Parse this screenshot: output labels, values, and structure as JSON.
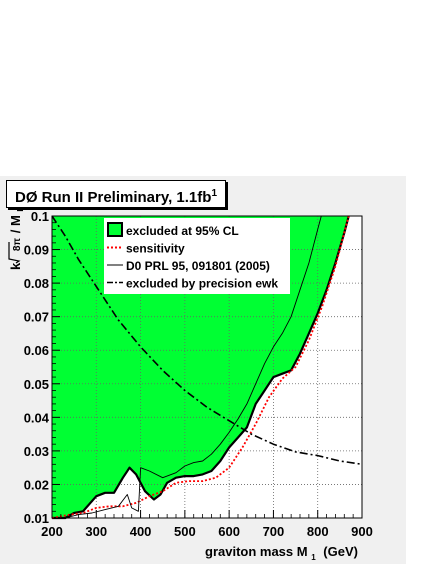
{
  "header": {
    "title": "DØ Run II Preliminary, 1.1fb",
    "title_sup": "1"
  },
  "chart_data": {
    "type": "line",
    "title": "DØ Run II Preliminary, 1.1fb^-1",
    "xlabel": "graviton mass M",
    "xlabel_sub": "1",
    "xlabel_unit": "(GeV)",
    "ylabel": "k/√8π/M_Pl",
    "ylabel_parts": {
      "k": "k",
      "num": "8π",
      "den": "M",
      "den_sub": "Pl"
    },
    "xlim": [
      200,
      900
    ],
    "ylim": [
      0.01,
      0.1
    ],
    "xticks": [
      200,
      300,
      400,
      500,
      600,
      700,
      800,
      900
    ],
    "yticks": [
      0.01,
      0.02,
      0.03,
      0.04,
      0.05,
      0.06,
      0.07,
      0.08,
      0.09,
      0.1
    ],
    "ytick_labels": [
      "0.01",
      "0.02",
      "0.03",
      "0.04",
      "0.05",
      "0.06",
      "0.07",
      "0.08",
      "0.09",
      "0.1"
    ],
    "grid": true,
    "legend_position": "top-center",
    "colors": {
      "excluded_fill": "#00ff33",
      "sensitivity": "#ff0000",
      "line": "#000000"
    },
    "legend": [
      {
        "label": "excluded at 95% CL",
        "style": "fill"
      },
      {
        "label": "sensitivity",
        "style": "red-dotted"
      },
      {
        "label": "D0 PRL 95, 091801 (2005)",
        "style": "thin-solid"
      },
      {
        "label": "excluded by precision ewk",
        "style": "dash-dot"
      }
    ],
    "series": [
      {
        "name": "excluded at 95% CL",
        "x": [
          200,
          230,
          250,
          270,
          300,
          320,
          340,
          360,
          375,
          390,
          410,
          430,
          445,
          460,
          480,
          500,
          520,
          540,
          560,
          580,
          600,
          620,
          640,
          660,
          680,
          700,
          720,
          740,
          760,
          780,
          800,
          820,
          840,
          860,
          870
        ],
        "y": [
          0.01,
          0.01,
          0.0115,
          0.012,
          0.0165,
          0.0175,
          0.0175,
          0.022,
          0.025,
          0.023,
          0.018,
          0.0155,
          0.017,
          0.0205,
          0.022,
          0.0225,
          0.0225,
          0.023,
          0.024,
          0.027,
          0.031,
          0.034,
          0.037,
          0.044,
          0.048,
          0.052,
          0.053,
          0.054,
          0.059,
          0.065,
          0.071,
          0.078,
          0.086,
          0.095,
          0.1
        ]
      },
      {
        "name": "sensitivity",
        "x": [
          200,
          240,
          270,
          300,
          330,
          360,
          390,
          420,
          450,
          480,
          510,
          540,
          570,
          600,
          630,
          660,
          690,
          720,
          750,
          780,
          810,
          840,
          870
        ],
        "y": [
          0.01,
          0.011,
          0.0115,
          0.013,
          0.0135,
          0.0135,
          0.0145,
          0.0165,
          0.018,
          0.0205,
          0.021,
          0.021,
          0.022,
          0.025,
          0.031,
          0.038,
          0.046,
          0.0515,
          0.055,
          0.063,
          0.073,
          0.085,
          0.1
        ]
      },
      {
        "name": "D0 PRL 95, 091801 (2005)",
        "x": [
          230,
          260,
          290,
          320,
          350,
          370,
          380,
          395,
          400,
          420,
          450,
          480,
          500,
          520,
          540,
          560,
          580,
          600,
          620,
          640,
          660,
          680,
          700,
          720,
          740,
          760,
          780,
          800,
          808
        ],
        "y": [
          0.01,
          0.011,
          0.0115,
          0.0125,
          0.0135,
          0.017,
          0.013,
          0.012,
          0.025,
          0.024,
          0.022,
          0.0235,
          0.0255,
          0.0265,
          0.027,
          0.029,
          0.032,
          0.0355,
          0.0395,
          0.044,
          0.05,
          0.056,
          0.061,
          0.065,
          0.07,
          0.078,
          0.086,
          0.096,
          0.1
        ]
      },
      {
        "name": "excluded by precision ewk",
        "x": [
          200,
          230,
          260,
          300,
          350,
          400,
          450,
          500,
          550,
          600,
          650,
          700,
          750,
          800,
          850,
          900
        ],
        "y": [
          0.1,
          0.094,
          0.087,
          0.079,
          0.069,
          0.061,
          0.054,
          0.048,
          0.043,
          0.039,
          0.035,
          0.032,
          0.0297,
          0.0286,
          0.027,
          0.026
        ]
      }
    ]
  }
}
